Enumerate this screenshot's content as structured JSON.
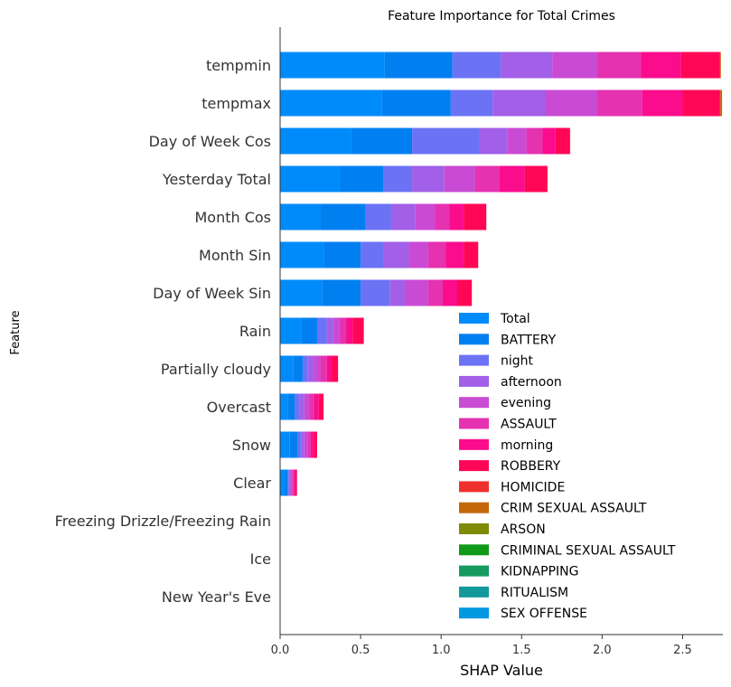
{
  "chart_data": {
    "type": "bar",
    "stacked": true,
    "orientation": "horizontal",
    "title": "Feature Importance for Total Crimes",
    "xlabel": "SHAP Value",
    "ylabel": "Feature",
    "xlim": [
      0,
      2.75
    ],
    "xticks": [
      "0.0",
      "0.5",
      "1.0",
      "1.5",
      "2.0",
      "2.5"
    ],
    "xtick_values": [
      0,
      0.5,
      1.0,
      1.5,
      2.0,
      2.5
    ],
    "legend_position": "lower-right",
    "categories": [
      "tempmin",
      "tempmax",
      "Day of Week Cos",
      "Yesterday Total",
      "Month Cos",
      "Month Sin",
      "Day of Week Sin",
      "Rain",
      "Partially cloudy",
      "Overcast",
      "Snow",
      "Clear",
      "Freezing Drizzle/Freezing Rain",
      "Ice",
      "New Year's Eve"
    ],
    "series": [
      {
        "name": "Total",
        "color": "#008bfb",
        "values": [
          0.65,
          0.63,
          0.44,
          0.37,
          0.25,
          0.27,
          0.26,
          0.13,
          0.08,
          0.05,
          0.06,
          0.025,
          0,
          0,
          0
        ]
      },
      {
        "name": "BATTERY",
        "color": "#0080f0",
        "values": [
          0.42,
          0.43,
          0.38,
          0.27,
          0.28,
          0.23,
          0.24,
          0.1,
          0.06,
          0.04,
          0.05,
          0.02,
          0,
          0,
          0
        ]
      },
      {
        "name": "night",
        "color": "#6c72f4",
        "values": [
          0.3,
          0.26,
          0.42,
          0.18,
          0.16,
          0.14,
          0.18,
          0.06,
          0.03,
          0.03,
          0.02,
          0.01,
          0,
          0,
          0
        ]
      },
      {
        "name": "afternoon",
        "color": "#a25fe8",
        "values": [
          0.32,
          0.33,
          0.17,
          0.2,
          0.15,
          0.16,
          0.1,
          0.04,
          0.04,
          0.03,
          0.02,
          0.01,
          0,
          0,
          0
        ]
      },
      {
        "name": "evening",
        "color": "#c94bd4",
        "values": [
          0.28,
          0.32,
          0.12,
          0.19,
          0.12,
          0.12,
          0.14,
          0.04,
          0.04,
          0.03,
          0.02,
          0.01,
          0,
          0,
          0
        ]
      },
      {
        "name": "ASSAULT",
        "color": "#e532b0",
        "values": [
          0.27,
          0.28,
          0.1,
          0.15,
          0.09,
          0.11,
          0.09,
          0.04,
          0.04,
          0.03,
          0.02,
          0.01,
          0,
          0,
          0
        ]
      },
      {
        "name": "morning",
        "color": "#fa0c8c",
        "values": [
          0.25,
          0.25,
          0.08,
          0.16,
          0.09,
          0.11,
          0.09,
          0.04,
          0.03,
          0.03,
          0.02,
          0.01,
          0,
          0,
          0
        ]
      },
      {
        "name": "ROBBERY",
        "color": "#ff0657",
        "values": [
          0.24,
          0.23,
          0.09,
          0.14,
          0.14,
          0.09,
          0.09,
          0.07,
          0.04,
          0.03,
          0.02,
          0.01,
          0,
          0,
          0
        ]
      },
      {
        "name": "HOMICIDE",
        "color": "#f0302d",
        "values": [
          0.005,
          0.005,
          0.002,
          0.002,
          0.001,
          0.001,
          0.001,
          0,
          0,
          0,
          0,
          0,
          0,
          0,
          0
        ]
      },
      {
        "name": "CRIM SEXUAL ASSAULT",
        "color": "#c36709",
        "values": [
          0.003,
          0.01,
          0,
          0,
          0,
          0,
          0,
          0,
          0,
          0,
          0,
          0,
          0,
          0,
          0
        ]
      },
      {
        "name": "ARSON",
        "color": "#7f8a07",
        "values": [
          0,
          0,
          0,
          0,
          0,
          0,
          0,
          0,
          0,
          0,
          0,
          0,
          0,
          0,
          0
        ]
      },
      {
        "name": "CRIMINAL SEXUAL ASSAULT",
        "color": "#119a1a",
        "values": [
          0,
          0,
          0,
          0,
          0,
          0,
          0,
          0,
          0,
          0,
          0,
          0,
          0,
          0,
          0
        ]
      },
      {
        "name": "KIDNAPPING",
        "color": "#159a5f",
        "values": [
          0,
          0,
          0,
          0,
          0,
          0,
          0,
          0,
          0,
          0,
          0,
          0,
          0,
          0,
          0
        ]
      },
      {
        "name": "RITUALISM",
        "color": "#13999c",
        "values": [
          0,
          0,
          0,
          0,
          0,
          0,
          0,
          0,
          0,
          0,
          0,
          0,
          0,
          0,
          0
        ]
      },
      {
        "name": "SEX OFFENSE",
        "color": "#0098e0",
        "values": [
          0,
          0,
          0,
          0,
          0,
          0,
          0,
          0,
          0,
          0,
          0,
          0,
          0,
          0,
          0
        ]
      }
    ]
  }
}
